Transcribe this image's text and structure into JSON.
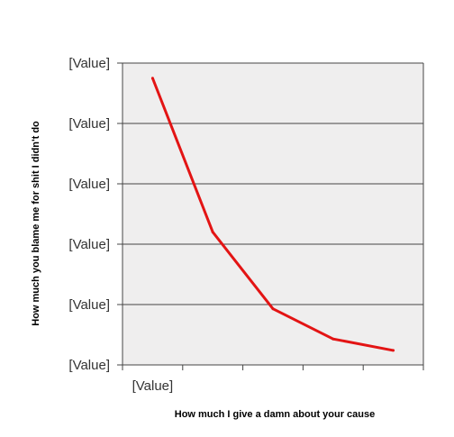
{
  "chart_data": {
    "type": "line",
    "xlabel": "How much I give a damn about your cause",
    "ylabel": "How much you blame me for shit I didn't do",
    "ylim": [
      0,
      5
    ],
    "xlim": [
      0,
      5
    ],
    "y_tick_labels": [
      "[Value]",
      "[Value]",
      "[Value]",
      "[Value]",
      "[Value]",
      "[Value]"
    ],
    "x_tick_labels": [
      "[Value]"
    ],
    "grid": "horizontal",
    "plot_background": "#efeeee",
    "series": [
      {
        "color": "#e31414",
        "x": [
          0.5,
          1.5,
          2.5,
          3.5,
          4.5
        ],
        "y": [
          4.75,
          2.2,
          0.93,
          0.43,
          0.24
        ]
      }
    ]
  }
}
